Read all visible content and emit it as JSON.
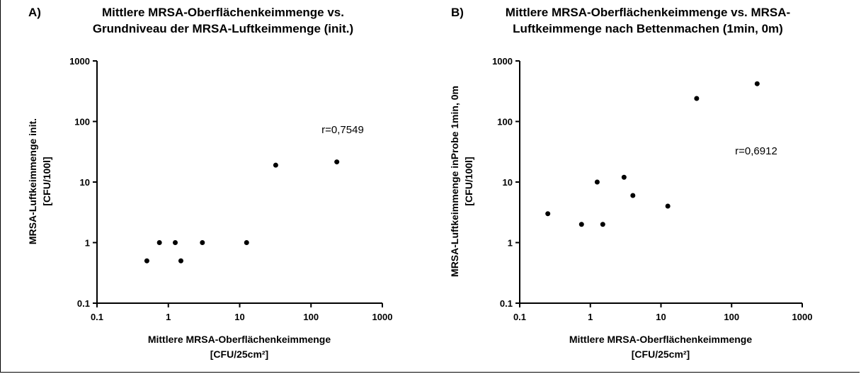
{
  "chart_data": [
    {
      "type": "scatter",
      "panel_label": "A)",
      "title_lines": [
        "Mittlere MRSA-Oberflächenkeimmenge vs.",
        "Grundniveau der MRSA-Luftkeimmenge (init.)"
      ],
      "xlabel_lines": [
        "Mittlere MRSA-Oberflächenkeimmenge",
        "[CFU/25cm²]"
      ],
      "ylabel_lines": [
        "MRSA-Luftkeimmenge init.",
        "[CFU/100l]"
      ],
      "xscale": "log",
      "yscale": "log",
      "xlim": [
        0.1,
        1000
      ],
      "ylim": [
        0.1,
        1000
      ],
      "xticks": [
        "0.1",
        "1",
        "10",
        "100",
        "1000"
      ],
      "yticks": [
        "0.1",
        "1",
        "10",
        "100",
        "1000"
      ],
      "grid": false,
      "annotation": "r=0,7549",
      "points": [
        {
          "x": 0.5,
          "y": 0.5
        },
        {
          "x": 0.75,
          "y": 1
        },
        {
          "x": 1.25,
          "y": 1
        },
        {
          "x": 1.5,
          "y": 0.5
        },
        {
          "x": 3,
          "y": 1
        },
        {
          "x": 12.5,
          "y": 1
        },
        {
          "x": 32,
          "y": 19
        },
        {
          "x": 230,
          "y": 21.5
        }
      ]
    },
    {
      "type": "scatter",
      "panel_label": "B)",
      "title_lines": [
        "Mittlere MRSA-Oberflächenkeimmenge vs. MRSA-",
        "Luftkeimmenge nach Bettenmachen (1min, 0m)"
      ],
      "xlabel_lines": [
        "Mittlere MRSA-Oberflächenkeimmenge",
        "[CFU/25cm²]"
      ],
      "ylabel_lines": [
        "MRSA-Luftkeimmenge inProbe 1min, 0m",
        "[CFU/100l]"
      ],
      "xscale": "log",
      "yscale": "log",
      "xlim": [
        0.1,
        1000
      ],
      "ylim": [
        0.1,
        1000
      ],
      "xticks": [
        "0.1",
        "1",
        "10",
        "100",
        "1000"
      ],
      "yticks": [
        "0.1",
        "1",
        "10",
        "100",
        "1000"
      ],
      "grid": false,
      "annotation": "r=0,6912",
      "points": [
        {
          "x": 0.25,
          "y": 3
        },
        {
          "x": 0.75,
          "y": 2
        },
        {
          "x": 1.25,
          "y": 10
        },
        {
          "x": 1.5,
          "y": 2
        },
        {
          "x": 3,
          "y": 12
        },
        {
          "x": 4,
          "y": 6
        },
        {
          "x": 12.5,
          "y": 4
        },
        {
          "x": 32,
          "y": 240
        },
        {
          "x": 230,
          "y": 420
        }
      ]
    }
  ]
}
